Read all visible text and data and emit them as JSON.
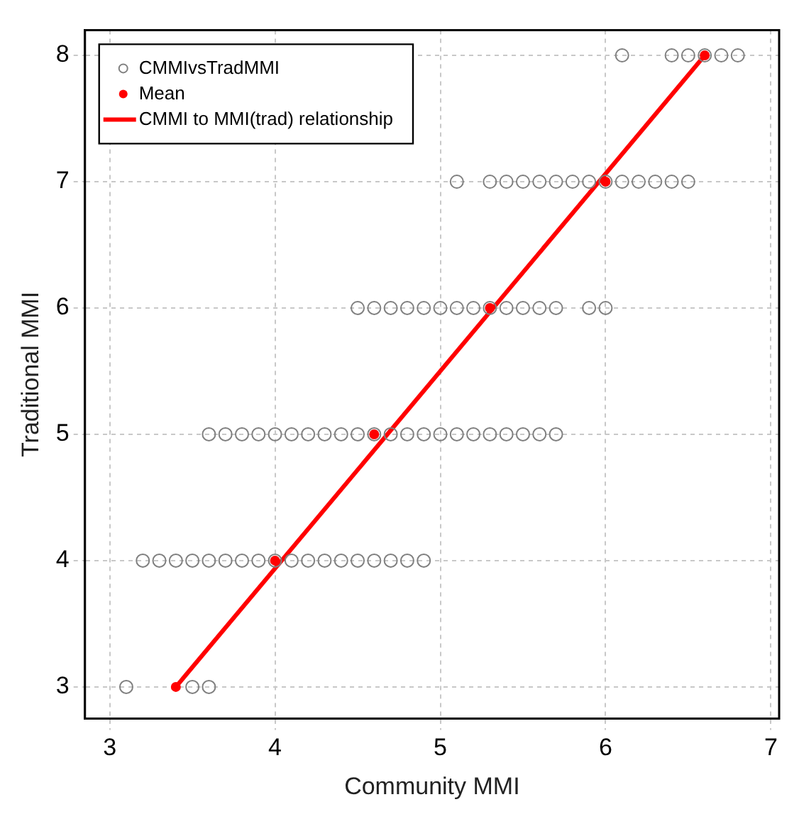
{
  "chart_data": {
    "type": "scatter",
    "xlabel": "Community MMI",
    "ylabel": "Traditional MMI",
    "xlim": [
      2.85,
      7.05
    ],
    "xticks": [
      3,
      4,
      5,
      6,
      7
    ],
    "ylim": [
      2.75,
      8.2
    ],
    "yticks": [
      3,
      4,
      5,
      6,
      7,
      8
    ],
    "grid": true,
    "legend": "top left",
    "series": [
      {
        "name": "CMMIvsTradMMI",
        "type": "scatter",
        "marker": "circle",
        "color": "#808080",
        "x": [
          3.1,
          3.5,
          3.6,
          3.2,
          3.3,
          3.4,
          3.5,
          3.6,
          3.7,
          3.8,
          3.9,
          4.0,
          4.1,
          4.2,
          4.3,
          4.4,
          4.5,
          4.6,
          4.7,
          4.8,
          4.9,
          3.6,
          3.7,
          3.8,
          3.9,
          4.0,
          4.1,
          4.2,
          4.3,
          4.4,
          4.5,
          4.6,
          4.7,
          4.8,
          4.9,
          5.0,
          5.1,
          5.2,
          5.3,
          5.4,
          5.5,
          5.6,
          5.7,
          4.5,
          4.6,
          4.7,
          4.8,
          4.9,
          5.0,
          5.1,
          5.2,
          5.3,
          5.4,
          5.5,
          5.6,
          5.7,
          5.9,
          6.0,
          5.1,
          5.3,
          5.4,
          5.5,
          5.6,
          5.7,
          5.8,
          5.9,
          6.0,
          6.1,
          6.2,
          6.3,
          6.4,
          6.5,
          6.1,
          6.4,
          6.5,
          6.6,
          6.7,
          6.8
        ],
        "values": [
          3,
          3,
          3,
          4,
          4,
          4,
          4,
          4,
          4,
          4,
          4,
          4,
          4,
          4,
          4,
          4,
          4,
          4,
          4,
          4,
          4,
          5,
          5,
          5,
          5,
          5,
          5,
          5,
          5,
          5,
          5,
          5,
          5,
          5,
          5,
          5,
          5,
          5,
          5,
          5,
          5,
          5,
          5,
          6,
          6,
          6,
          6,
          6,
          6,
          6,
          6,
          6,
          6,
          6,
          6,
          6,
          6,
          6,
          7,
          7,
          7,
          7,
          7,
          7,
          7,
          7,
          7,
          7,
          7,
          7,
          7,
          7,
          8,
          8,
          8,
          8,
          8,
          8
        ]
      },
      {
        "name": "Mean",
        "type": "scatter",
        "marker": "circle",
        "color": "#ff0000",
        "x": [
          3.4,
          4.0,
          4.6,
          5.3,
          6.0,
          6.6
        ],
        "values": [
          3,
          4,
          5,
          6,
          7,
          8
        ]
      },
      {
        "name": "CMMI to MMI(trad) relationship",
        "type": "line",
        "marker": "none",
        "color": "#ff0000",
        "x": [
          3.4,
          6.6
        ],
        "values": [
          3,
          8
        ]
      }
    ]
  }
}
